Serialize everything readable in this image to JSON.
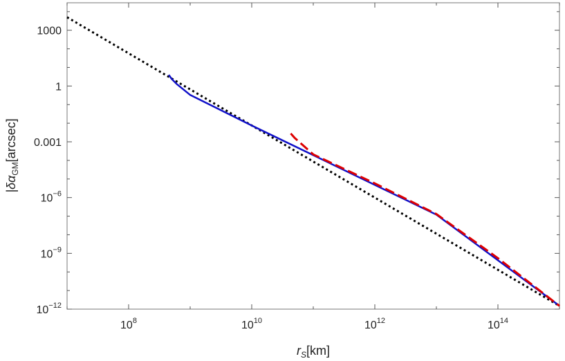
{
  "chart_data": {
    "type": "line",
    "x_scale": "log",
    "y_scale": "log",
    "xlabel": {
      "main": "r",
      "sub": "S",
      "unit": "[km]"
    },
    "ylabel": {
      "main": "|δα",
      "sub": "GM",
      "unit": "[arcsec]"
    },
    "xlim": [
      10000000.0,
      1000000000000000.0
    ],
    "ylim": [
      1e-12,
      30000
    ],
    "x_ticks": [
      {
        "value": 100000000.0,
        "base": "10",
        "exp": "8"
      },
      {
        "value": 10000000000.0,
        "base": "10",
        "exp": "10"
      },
      {
        "value": 1000000000000.0,
        "base": "10",
        "exp": "12"
      },
      {
        "value": 100000000000000.0,
        "base": "10",
        "exp": "14"
      }
    ],
    "y_ticks": [
      {
        "value": 1000,
        "base": "1000",
        "exp": ""
      },
      {
        "value": 1,
        "base": "1",
        "exp": ""
      },
      {
        "value": 0.001,
        "base": "0.001",
        "exp": ""
      },
      {
        "value": 1e-06,
        "base": "10",
        "exp": "−6"
      },
      {
        "value": 1e-09,
        "base": "10",
        "exp": "−9"
      },
      {
        "value": 1e-12,
        "base": "10",
        "exp": "−12"
      }
    ],
    "grid": false,
    "legend": "none",
    "series": [
      {
        "color": "#000000",
        "style": "dotted",
        "points": [
          [
            10000000.0,
            5000
          ],
          [
            1000000000000000.0,
            1.5e-12
          ]
        ]
      },
      {
        "color": "#1010c8",
        "style": "solid",
        "points": [
          [
            450000000.0,
            4.0
          ],
          [
            500000000.0,
            2.4
          ],
          [
            600000000.0,
            1.3
          ],
          [
            800000000.0,
            0.6
          ],
          [
            1000000000.0,
            0.33
          ],
          [
            10000000000.0,
            0.0075
          ],
          [
            100000000000.0,
            0.00019
          ],
          [
            10000000000000.0,
            1.2e-07
          ],
          [
            1000000000000000.0,
            1.5e-12
          ]
        ]
      },
      {
        "color": "#dd0000",
        "style": "dashed",
        "points": [
          [
            43000000000.0,
            0.0028
          ],
          [
            50000000000.0,
            0.0016
          ],
          [
            70000000000.0,
            0.0006
          ],
          [
            100000000000.0,
            0.00021
          ],
          [
            1000000000000.0,
            5.8e-06
          ],
          [
            10000000000000.0,
            1.3e-07
          ],
          [
            100000000000000.0,
            5.5e-10
          ],
          [
            1000000000000000.0,
            1.5e-12
          ]
        ]
      }
    ]
  }
}
